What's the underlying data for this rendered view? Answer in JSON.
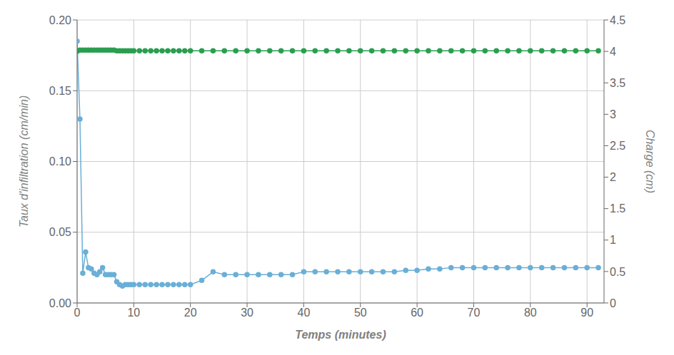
{
  "chart_data": {
    "type": "line",
    "xlabel": "Temps (minutes)",
    "ylabel": "Taux d'infiltration (cm/min)",
    "y2label": "Charge (cm)",
    "x": [
      0,
      0.5,
      1,
      1.5,
      2,
      2.5,
      3,
      3.5,
      4,
      4.5,
      5,
      5.5,
      6,
      6.5,
      7,
      7.5,
      8,
      8.5,
      9,
      9.5,
      10,
      11,
      12,
      13,
      14,
      15,
      16,
      17,
      18,
      19,
      20,
      22,
      24,
      26,
      28,
      30,
      32,
      34,
      36,
      38,
      40,
      42,
      44,
      46,
      48,
      50,
      52,
      54,
      56,
      58,
      60,
      62,
      64,
      66,
      68,
      70,
      72,
      74,
      76,
      78,
      80,
      82,
      84,
      86,
      88,
      90,
      92
    ],
    "series": [
      {
        "color": "#6aafd6",
        "marker": "circle",
        "values": [
          0.185,
          0.13,
          0.021,
          0.036,
          0.025,
          0.024,
          0.021,
          0.02,
          0.022,
          0.025,
          0.02,
          0.02,
          0.02,
          0.02,
          0.015,
          0.013,
          0.012,
          0.013,
          0.013,
          0.013,
          0.013,
          0.013,
          0.013,
          0.013,
          0.013,
          0.013,
          0.013,
          0.013,
          0.013,
          0.013,
          0.013,
          0.016,
          0.022,
          0.02,
          0.02,
          0.02,
          0.02,
          0.02,
          0.02,
          0.02,
          0.022,
          0.022,
          0.022,
          0.022,
          0.022,
          0.022,
          0.022,
          0.022,
          0.022,
          0.023,
          0.023,
          0.024,
          0.024,
          0.025,
          0.025,
          0.025,
          0.025,
          0.025,
          0.025,
          0.025,
          0.025,
          0.025,
          0.025,
          0.025,
          0.025,
          0.025,
          0.025
        ]
      },
      {
        "color": "#2a9e50",
        "marker": "circle",
        "axis": "y2",
        "values": [
          4.0,
          4.02,
          4.02,
          4.02,
          4.02,
          4.02,
          4.02,
          4.02,
          4.02,
          4.02,
          4.02,
          4.02,
          4.02,
          4.02,
          4.01,
          4.01,
          4.01,
          4.01,
          4.01,
          4.01,
          4.01,
          4.01,
          4.01,
          4.01,
          4.01,
          4.01,
          4.01,
          4.01,
          4.01,
          4.01,
          4.01,
          4.01,
          4.01,
          4.01,
          4.01,
          4.01,
          4.01,
          4.01,
          4.01,
          4.01,
          4.01,
          4.01,
          4.01,
          4.01,
          4.01,
          4.01,
          4.01,
          4.01,
          4.01,
          4.01,
          4.01,
          4.01,
          4.01,
          4.01,
          4.01,
          4.01,
          4.01,
          4.01,
          4.01,
          4.01,
          4.01,
          4.01,
          4.01,
          4.01,
          4.01,
          4.01,
          4.01
        ]
      }
    ],
    "xlim": [
      0,
      93
    ],
    "xticks": [
      0,
      10,
      20,
      30,
      40,
      50,
      60,
      70,
      80,
      90
    ],
    "ylim": [
      0,
      0.2
    ],
    "yticks": [
      {
        "value": 0,
        "label": "0.00"
      },
      {
        "value": 0.05,
        "label": "0.05"
      },
      {
        "value": 0.1,
        "label": "0.10"
      },
      {
        "value": 0.15,
        "label": "0.15"
      },
      {
        "value": 0.2,
        "label": "0.20"
      }
    ],
    "y2lim": [
      0,
      4.5
    ],
    "y2ticks": [
      0,
      0.5,
      1,
      1.5,
      2,
      2.5,
      3,
      3.5,
      4,
      4.5
    ],
    "grid": true
  }
}
